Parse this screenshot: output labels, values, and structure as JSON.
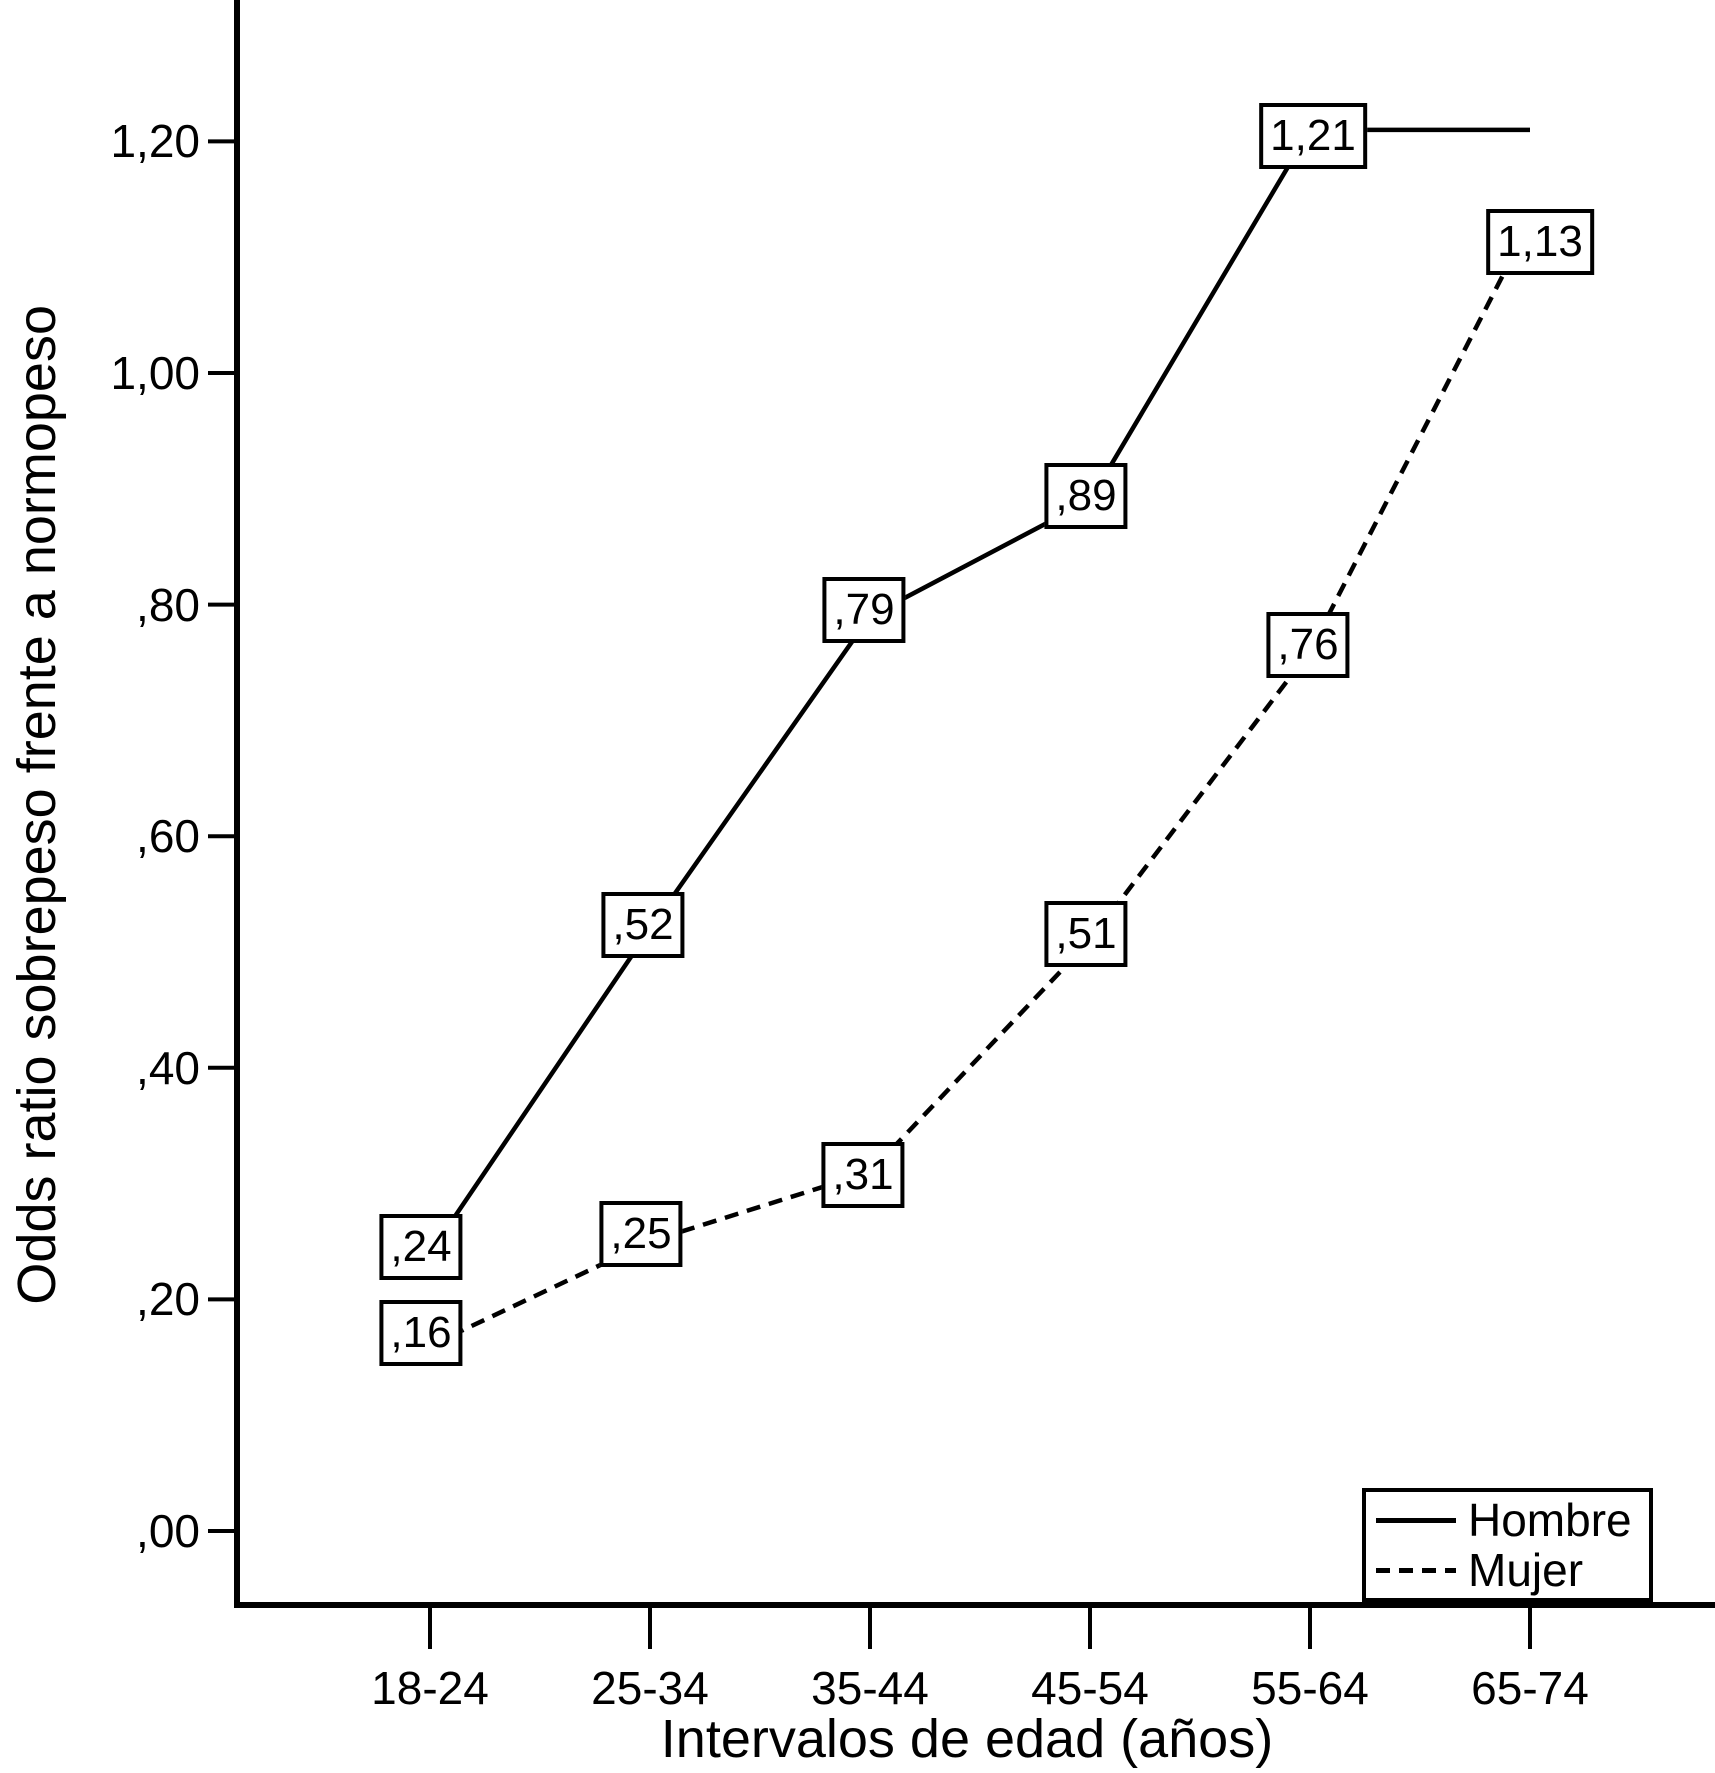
{
  "colors": {
    "foreground": "#000000",
    "background": "#ffffff"
  },
  "chart_data": {
    "type": "line",
    "xlabel": "Intervalos de edad (años)",
    "ylabel": "Odds ratio sobrepeso frente a normopeso",
    "categories": [
      "18-24",
      "25-34",
      "35-44",
      "45-54",
      "55-64",
      "65-74"
    ],
    "y_ticks": [
      ",00",
      ",20",
      ",40",
      ",60",
      ",80",
      "1,00",
      "1,20"
    ],
    "y_tick_values": [
      0.0,
      0.2,
      0.4,
      0.6,
      0.8,
      1.0,
      1.2
    ],
    "ylim": [
      -0.06,
      1.32
    ],
    "grid": "off",
    "legend_position": "bottom-right",
    "series": [
      {
        "name": "Hombre",
        "style": "solid",
        "values": [
          0.24,
          0.52,
          0.79,
          0.89,
          1.21,
          1.21
        ],
        "labels": [
          ",24",
          ",52",
          ",79",
          ",89",
          "1,21",
          null
        ]
      },
      {
        "name": "Mujer",
        "style": "dashed",
        "values": [
          0.16,
          0.25,
          0.31,
          0.51,
          0.76,
          1.13
        ],
        "labels": [
          ",16",
          ",25",
          ",31",
          ",51",
          ",76",
          "1,13"
        ]
      }
    ]
  }
}
